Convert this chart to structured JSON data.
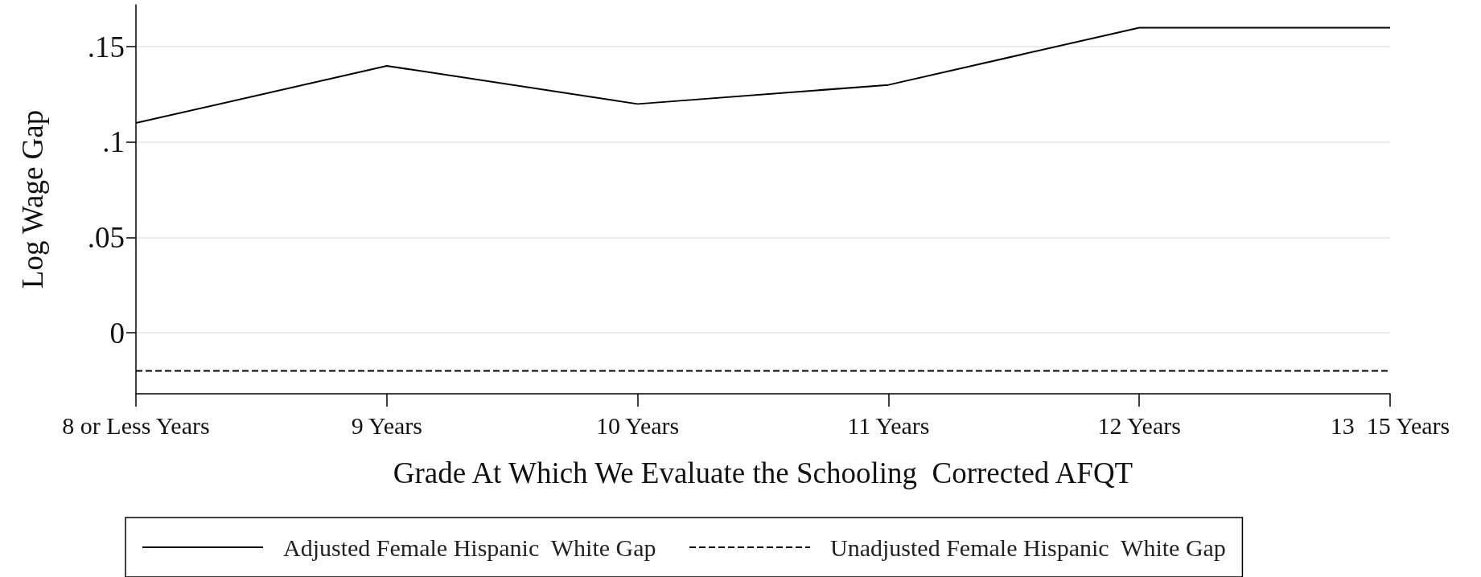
{
  "chart_data": {
    "type": "line",
    "xlabel": "Grade At Which We Evaluate the Schooling  Corrected AFQT",
    "ylabel": "Log Wage Gap",
    "categories": [
      "8 or Less Years",
      "9 Years",
      "10 Years",
      "11 Years",
      "12 Years",
      "13  15 Years"
    ],
    "series": [
      {
        "name": "Adjusted Female Hispanic  White Gap",
        "color": "#000000",
        "values": [
          0.11,
          0.14,
          0.12,
          0.13,
          0.16,
          0.16
        ],
        "line_style": "solid"
      },
      {
        "name": "Unadjusted Female Hispanic  White Gap",
        "color": "#000000",
        "values": [
          -0.02,
          -0.02,
          -0.02,
          -0.02,
          -0.02,
          -0.02
        ],
        "line_style": "dashed"
      }
    ],
    "ylim": [
      -0.032,
      0.172
    ],
    "yticks": [
      0,
      {
        "value": 0.05,
        "label": ".05"
      },
      {
        "value": 0.1,
        "label": ".1"
      },
      {
        "value": 0.15,
        "label": ".15"
      }
    ],
    "grid": "y",
    "legend": "bottom",
    "marker": "none"
  }
}
